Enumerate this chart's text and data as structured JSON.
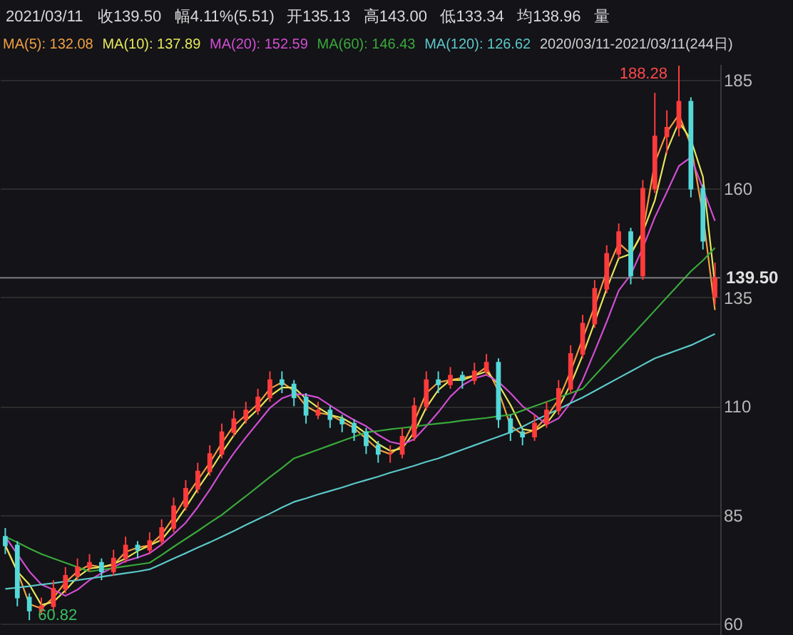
{
  "chart_data": {
    "type": "candlestick",
    "subtitle": "2020/03/11-2021/03/11(244日)",
    "annotations": [
      "2021/03/11",
      "收139.50",
      "幅4.11%(5.51)",
      "开135.13",
      "高143.00",
      "低133.34",
      "均138.96",
      "量",
      "188.28",
      "60.82"
    ],
    "categories": [
      null,
      null,
      null,
      null,
      null,
      null,
      null,
      null,
      null,
      null,
      null,
      null,
      null,
      null,
      null,
      null,
      null,
      null,
      null,
      null,
      null,
      null,
      null,
      null,
      null,
      null,
      null,
      null,
      null,
      null,
      null,
      null,
      null,
      null,
      null,
      null,
      null,
      null,
      null,
      null,
      null,
      null,
      null,
      null,
      null,
      null,
      null,
      null,
      null,
      null,
      null,
      null,
      null,
      null,
      null,
      null,
      null,
      null,
      null,
      null
    ],
    "ohlc": [
      [
        80,
        82,
        76,
        78
      ],
      [
        78,
        79,
        64,
        66
      ],
      [
        66,
        67,
        60.82,
        63
      ],
      [
        63,
        66,
        62,
        64
      ],
      [
        64,
        70,
        63,
        68
      ],
      [
        68,
        73,
        67,
        71
      ],
      [
        71,
        75,
        70,
        73
      ],
      [
        73,
        76,
        72,
        74
      ],
      [
        74,
        75,
        70,
        72
      ],
      [
        72,
        77,
        71,
        75
      ],
      [
        75,
        80,
        74,
        78
      ],
      [
        78,
        79,
        75,
        77
      ],
      [
        77,
        81,
        76,
        79
      ],
      [
        79,
        84,
        78,
        82
      ],
      [
        82,
        89,
        81,
        87
      ],
      [
        87,
        93,
        86,
        91
      ],
      [
        91,
        97,
        90,
        95
      ],
      [
        95,
        101,
        94,
        99
      ],
      [
        99,
        106,
        98,
        104
      ],
      [
        104,
        109,
        103,
        107
      ],
      [
        107,
        111,
        106,
        109
      ],
      [
        109,
        114,
        108,
        112
      ],
      [
        112,
        118,
        111,
        116
      ],
      [
        116,
        118,
        113,
        115
      ],
      [
        115,
        116,
        110,
        112
      ],
      [
        112,
        113,
        106,
        108
      ],
      [
        108,
        111,
        107,
        109
      ],
      [
        109,
        110,
        105,
        107
      ],
      [
        107,
        108,
        104,
        106
      ],
      [
        106,
        107,
        102,
        104
      ],
      [
        104,
        105,
        99,
        101
      ],
      [
        101,
        102,
        97,
        99
      ],
      [
        99,
        101,
        97,
        99
      ],
      [
        99,
        105,
        98,
        103
      ],
      [
        103,
        112,
        102,
        110
      ],
      [
        110,
        118,
        109,
        116
      ],
      [
        116,
        118,
        113,
        115
      ],
      [
        115,
        119,
        114,
        117
      ],
      [
        117,
        118,
        114,
        116
      ],
      [
        116,
        120,
        115,
        118
      ],
      [
        118,
        122,
        117,
        120
      ],
      [
        120,
        121,
        105,
        107
      ],
      [
        107,
        108,
        102,
        104
      ],
      [
        104,
        105,
        101,
        103
      ],
      [
        103,
        108,
        102,
        106
      ],
      [
        106,
        111,
        105,
        109
      ],
      [
        109,
        116,
        108,
        114
      ],
      [
        114,
        124,
        113,
        122
      ],
      [
        122,
        131,
        121,
        129
      ],
      [
        129,
        139,
        128,
        137
      ],
      [
        137,
        147,
        136,
        145
      ],
      [
        145,
        152,
        144,
        150
      ],
      [
        150,
        151,
        138,
        140
      ],
      [
        140,
        162,
        139,
        160
      ],
      [
        160,
        182,
        159,
        172
      ],
      [
        172,
        178,
        168,
        174
      ],
      [
        174,
        188.28,
        172,
        180
      ],
      [
        180,
        181,
        158,
        160
      ],
      [
        160,
        161,
        146,
        148
      ],
      [
        135.13,
        143,
        133.34,
        139.5
      ]
    ],
    "colors": [
      "#54d8d8",
      "#54d8d8",
      "#54d8d8",
      "#ff3b3b",
      "#ff3b3b",
      "#ff3b3b",
      "#ff3b3b",
      "#ff3b3b",
      "#54d8d8",
      "#ff3b3b",
      "#ff3b3b",
      "#54d8d8",
      "#ff3b3b",
      "#ff3b3b",
      "#ff3b3b",
      "#ff3b3b",
      "#ff3b3b",
      "#ff3b3b",
      "#ff3b3b",
      "#ff3b3b",
      "#ff3b3b",
      "#ff3b3b",
      "#ff3b3b",
      "#54d8d8",
      "#54d8d8",
      "#54d8d8",
      "#ff3b3b",
      "#54d8d8",
      "#54d8d8",
      "#54d8d8",
      "#54d8d8",
      "#54d8d8",
      "#ff3b3b",
      "#ff3b3b",
      "#ff3b3b",
      "#ff3b3b",
      "#54d8d8",
      "#ff3b3b",
      "#54d8d8",
      "#ff3b3b",
      "#ff3b3b",
      "#54d8d8",
      "#54d8d8",
      "#54d8d8",
      "#ff3b3b",
      "#ff3b3b",
      "#ff3b3b",
      "#ff3b3b",
      "#ff3b3b",
      "#ff3b3b",
      "#ff3b3b",
      "#ff3b3b",
      "#54d8d8",
      "#ff3b3b",
      "#ff3b3b",
      "#ff3b3b",
      "#ff3b3b",
      "#54d8d8",
      "#54d8d8",
      "#ff3b3b"
    ],
    "series": [
      {
        "name": "MA(5): 132.08",
        "type": "line",
        "color": "#f0a040",
        "values": [
          78,
          72,
          64.5,
          63.5,
          66,
          69.5,
          72,
          73.5,
          73,
          73.5,
          76.5,
          77.5,
          78,
          80.5,
          84.5,
          89,
          93,
          97,
          101.5,
          105.5,
          108,
          110.5,
          114,
          115.5,
          113.5,
          110,
          108.5,
          108,
          106.5,
          105,
          102.5,
          100,
          99,
          101,
          106.5,
          113,
          115.5,
          116,
          116.5,
          117,
          119,
          113.5,
          105.5,
          103.5,
          104.5,
          107.5,
          111.5,
          118,
          125.5,
          133,
          141,
          147.5,
          145,
          150,
          166,
          173,
          177,
          170,
          154,
          132.1
        ]
      },
      {
        "name": "MA(10): 137.89",
        "type": "line",
        "color": "#e6e65a",
        "values": [
          78,
          72,
          69,
          64.3,
          65,
          67.7,
          70.7,
          72.7,
          73,
          73.7,
          75,
          76.7,
          78,
          79.3,
          82.7,
          86.7,
          91,
          95,
          99.3,
          103.3,
          106.7,
          109.3,
          112.3,
          114.3,
          114.3,
          111.7,
          109.7,
          108,
          107.3,
          105.7,
          103.7,
          101.3,
          99.7,
          100.3,
          104,
          109.7,
          113.7,
          116,
          116,
          117,
          118,
          115,
          110.3,
          104.7,
          104.3,
          106,
          109.7,
          115,
          121.7,
          129.3,
          137,
          144,
          145,
          150,
          157.3,
          168.7,
          175.3,
          171.3,
          162.7,
          137.9
        ]
      },
      {
        "name": "MA(20): 152.59",
        "type": "line",
        "color": "#d24ed2",
        "values": [
          80,
          76,
          72,
          69,
          67.8,
          66.4,
          67.8,
          70,
          71.6,
          73,
          74.4,
          75.2,
          76.2,
          78.2,
          80.6,
          83.2,
          86.8,
          90.8,
          95.2,
          99.2,
          102.8,
          106.2,
          109.6,
          111.8,
          112.8,
          112.6,
          112,
          110.2,
          108.4,
          106.8,
          105.4,
          103.4,
          101.8,
          101.2,
          102.4,
          105.4,
          108.6,
          112.2,
          114.8,
          116.4,
          117.2,
          115.6,
          113,
          110,
          108,
          105.8,
          107.2,
          110.8,
          116,
          122.6,
          129.4,
          136.6,
          140.2,
          146.4,
          153.4,
          159.2,
          165.2,
          167.2,
          160,
          152.6
        ]
      },
      {
        "name": "MA(60): 146.43",
        "type": "line",
        "color": "#3aa83a",
        "values": [
          80,
          78.7,
          77.3,
          76,
          75,
          74,
          73,
          72,
          72.4,
          72.8,
          73.2,
          73.6,
          74,
          75.8,
          77.7,
          79.5,
          81.3,
          83.2,
          85,
          87.2,
          89.3,
          91.5,
          93.7,
          95.8,
          98,
          99,
          100,
          101,
          102,
          103,
          104,
          104.3,
          104.7,
          105,
          105.3,
          105.7,
          106,
          106.3,
          106.7,
          107,
          107.3,
          107.7,
          108,
          109,
          110,
          111,
          112,
          113,
          114,
          117,
          120,
          123,
          126,
          129,
          132,
          135,
          138,
          141,
          143.5,
          146.4
        ]
      },
      {
        "name": "MA(120): 126.62",
        "type": "line",
        "color": "#5cc8c8",
        "values": [
          68,
          68.3,
          68.6,
          69,
          69.3,
          69.7,
          70,
          70.4,
          70.8,
          71.2,
          71.6,
          72,
          72.5,
          73.7,
          75,
          76.2,
          77.5,
          78.7,
          80,
          81.3,
          82.7,
          84,
          85.3,
          86.7,
          88,
          88.8,
          89.7,
          90.5,
          91.3,
          92.2,
          93,
          93.8,
          94.7,
          95.5,
          96.3,
          97.2,
          98,
          99,
          100,
          101,
          102,
          103,
          104,
          105.3,
          106.7,
          108,
          109.3,
          110.7,
          112,
          113.5,
          115,
          116.5,
          118,
          119.5,
          121,
          122,
          123,
          124,
          125.3,
          126.6
        ]
      }
    ],
    "ylim": [
      57.4,
      188.6
    ],
    "yticks": [
      60,
      85,
      110,
      135,
      160,
      185
    ],
    "ref_lines": [
      {
        "axis": "y",
        "value": 139.5,
        "label": "139.50",
        "color": "#8a8a8a"
      }
    ],
    "grid": "y",
    "legend": "top",
    "tick_labels": "y"
  }
}
